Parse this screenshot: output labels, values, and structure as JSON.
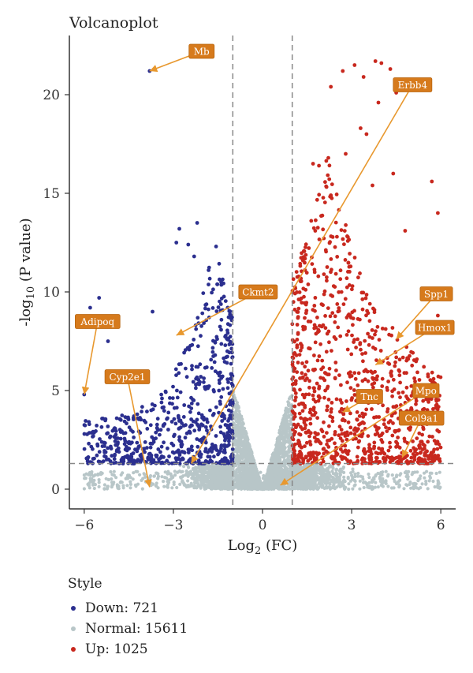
{
  "chart_data": {
    "type": "scatter",
    "title": "Volcanoplot",
    "xlabel": {
      "prefix": "Log",
      "sub": "2",
      "suffix": " (FC)"
    },
    "ylabel": {
      "prefix": "-log",
      "sub": "10",
      "suffix": " (P value)"
    },
    "xlim": [
      -6.5,
      6.5
    ],
    "ylim": [
      -1,
      23
    ],
    "xticks": [
      -6,
      -3,
      0,
      3,
      6
    ],
    "yticks": [
      0,
      5,
      10,
      15,
      20
    ],
    "thresholds": {
      "log2fc": [
        -1,
        1
      ],
      "neg_log10_p": 1.3
    },
    "legend_title": "Style",
    "series": [
      {
        "key": "down",
        "label": "Down: 721",
        "color": "#2b2f8f"
      },
      {
        "key": "normal",
        "label": "Normal: 15611",
        "color": "#b8c6c8"
      },
      {
        "key": "up",
        "label": "Up: 1025",
        "color": "#c8281e"
      }
    ],
    "annotations": [
      {
        "gene": "Mb",
        "point": [
          -3.8,
          21.2
        ],
        "label_at": [
          -2.05,
          22.2
        ]
      },
      {
        "gene": "Erbb4",
        "point": [
          -2.4,
          1.3
        ],
        "label_at": [
          5.05,
          20.5
        ]
      },
      {
        "gene": "Ckmt2",
        "point": [
          -2.9,
          7.8
        ],
        "label_at": [
          -0.15,
          10.0
        ]
      },
      {
        "gene": "Adipoq",
        "point": [
          -6.0,
          4.8
        ],
        "label_at": [
          -5.55,
          8.5
        ]
      },
      {
        "gene": "Cyp2e1",
        "point": [
          -3.8,
          0.1
        ],
        "label_at": [
          -4.55,
          5.7
        ]
      },
      {
        "gene": "Spp1",
        "point": [
          4.5,
          7.6
        ],
        "label_at": [
          5.85,
          9.9
        ]
      },
      {
        "gene": "Hmox1",
        "point": [
          3.8,
          6.3
        ],
        "label_at": [
          5.8,
          8.2
        ]
      },
      {
        "gene": "Tnc",
        "point": [
          2.7,
          3.9
        ],
        "label_at": [
          3.6,
          4.7
        ]
      },
      {
        "gene": "Mpo",
        "point": [
          0.6,
          0.2
        ],
        "label_at": [
          5.5,
          5.0
        ]
      },
      {
        "gene": "Col9a1",
        "point": [
          4.7,
          1.6
        ],
        "label_at": [
          5.35,
          3.6
        ]
      }
    ]
  }
}
